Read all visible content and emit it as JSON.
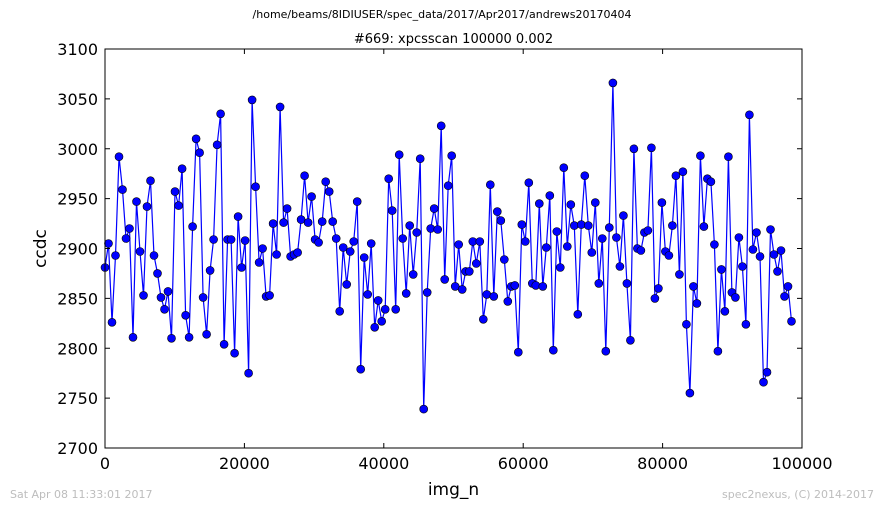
{
  "figure": {
    "suptitle": "/home/beams/8IDIUSER/spec_data/2017/Apr2017/andrews20170404",
    "timestamp": "Sat Apr 08 11:33:01 2017",
    "credit": "spec2nexus, (C) 2014-2017"
  },
  "chart_data": {
    "type": "line",
    "title": "#669: xpcsscan 100000 0.002",
    "xlabel": "img_n",
    "ylabel": "ccdc",
    "xlim": [
      0,
      100000
    ],
    "ylim": [
      2700,
      3100
    ],
    "xticks": [
      0,
      20000,
      40000,
      60000,
      80000,
      100000
    ],
    "yticks": [
      2700,
      2750,
      2800,
      2850,
      2900,
      2950,
      3000,
      3050,
      3100
    ],
    "grid": false,
    "legend": "none",
    "line_color": "#0000ff",
    "marker": "circle",
    "x_step": 502.5,
    "series": [
      {
        "values": [
          2881,
          2905,
          2826,
          2893,
          2992,
          2959,
          2910,
          2920,
          2811,
          2947,
          2897,
          2853,
          2942,
          2968,
          2893,
          2875,
          2851,
          2839,
          2857,
          2810,
          2957,
          2943,
          2980,
          2833,
          2811,
          2922,
          3010,
          2996,
          2851,
          2814,
          2878,
          2909,
          3004,
          3035,
          2804,
          2909,
          2909,
          2795,
          2932,
          2881,
          2908,
          2775,
          3049,
          2962,
          2886,
          2900,
          2852,
          2853,
          2925,
          2894,
          3042,
          2926,
          2940,
          2892,
          2894,
          2896,
          2929,
          2973,
          2926,
          2952,
          2909,
          2906,
          2927,
          2967,
          2957,
          2927,
          2910,
          2837,
          2901,
          2864,
          2897,
          2907,
          2947,
          2779,
          2891,
          2854,
          2905,
          2821,
          2848,
          2827,
          2839,
          2970,
          2938,
          2839,
          2994,
          2910,
          2855,
          2923,
          2874,
          2916,
          2990,
          2739,
          2856,
          2920,
          2940,
          2919,
          3023,
          2869,
          2963,
          2993,
          2862,
          2904,
          2859,
          2877,
          2877,
          2907,
          2885,
          2907,
          2829,
          2854,
          2964,
          2852,
          2937,
          2928,
          2889,
          2847,
          2862,
          2863,
          2796,
          2924,
          2907,
          2966,
          2865,
          2863,
          2945,
          2862,
          2901,
          2953,
          2798,
          2917,
          2881,
          2981,
          2902,
          2944,
          2923,
          2834,
          2924,
          2973,
          2923,
          2896,
          2946,
          2865,
          2910,
          2797,
          2921,
          3066,
          2911,
          2882,
          2933,
          2865,
          2808,
          3000,
          2900,
          2898,
          2916,
          2918,
          3001,
          2850,
          2860,
          2946,
          2897,
          2893,
          2923,
          2973,
          2874,
          2977,
          2824,
          2755,
          2862,
          2845,
          2993,
          2922,
          2970,
          2967,
          2904,
          2797,
          2879,
          2837,
          2992,
          2856,
          2851,
          2911,
          2882,
          2824,
          3034,
          2899,
          2916,
          2892,
          2766,
          2776,
          2919,
          2894,
          2877,
          2898,
          2852,
          2862,
          2827
        ]
      }
    ]
  }
}
